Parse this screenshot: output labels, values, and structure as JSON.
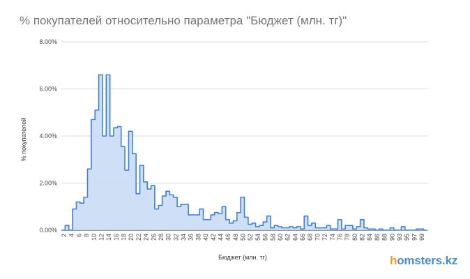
{
  "chart_data": {
    "type": "area",
    "title": "% покупателей относительно параметра \"Бюджет (млн. тг)\"",
    "xlabel": "Бюджет (млн. тг)",
    "ylabel": "% покупателей",
    "ylim": [
      0,
      8
    ],
    "yticks": [
      "0.00%",
      "2.00%",
      "4.00%",
      "6.00%",
      "8.00%"
    ],
    "xticks": [
      "2",
      "4",
      "6",
      "8",
      "10",
      "12",
      "14",
      "16",
      "18",
      "20",
      "22",
      "24",
      "26",
      "28",
      "30",
      "32",
      "34",
      "36",
      "38",
      "40",
      "42",
      "44",
      "46",
      "48",
      "50",
      "52",
      "54",
      "56",
      "58",
      "60",
      "62",
      "64",
      "66",
      "68",
      "70",
      "72",
      "74",
      "76",
      "78",
      "80",
      "82",
      "84",
      "86",
      "88",
      "90",
      "93",
      "95",
      "97",
      "99"
    ],
    "grid": true,
    "legend": "none",
    "colors": {
      "line": "#3d7fdc",
      "fill": "#c5d9f5",
      "grid": "#d9d9d9"
    },
    "series": [
      {
        "values": [
          0,
          0.2,
          0,
          0.9,
          1.2,
          1.15,
          1.4,
          2.6,
          4.7,
          5.1,
          6.6,
          4.0,
          6.6,
          4.0,
          4.35,
          4.4,
          3.55,
          2.55,
          4.2,
          3.25,
          1.55,
          2.75,
          2.05,
          1.75,
          1.9,
          0.9,
          1.05,
          1.45,
          1.65,
          1.5,
          1.4,
          1.0,
          1.1,
          1.1,
          0.65,
          0.65,
          0.65,
          0.9,
          0.45,
          0.45,
          0.65,
          0.75,
          0.7,
          1.0,
          0.45,
          0.3,
          0.4,
          0.75,
          1.4,
          0.55,
          0.25,
          0.3,
          0.15,
          0.2,
          0.35,
          0.6,
          0.1,
          0.2,
          0.15,
          0.1,
          0.1,
          0.15,
          0.1,
          0.15,
          0.05,
          0.6,
          0.2,
          0.3,
          0.1,
          0.1,
          0.1,
          0.2,
          0.05,
          0.05,
          0.45,
          0.05,
          0.2,
          0.2,
          0.05,
          0.15,
          0.45,
          0.1,
          0.05,
          0.05,
          0,
          0.05,
          0,
          0,
          0.1,
          0,
          0,
          0.15,
          0,
          0,
          0,
          0.05,
          0.05,
          0
        ]
      }
    ]
  },
  "brand": {
    "prefix": "h",
    "rest": "omsters.kz"
  }
}
